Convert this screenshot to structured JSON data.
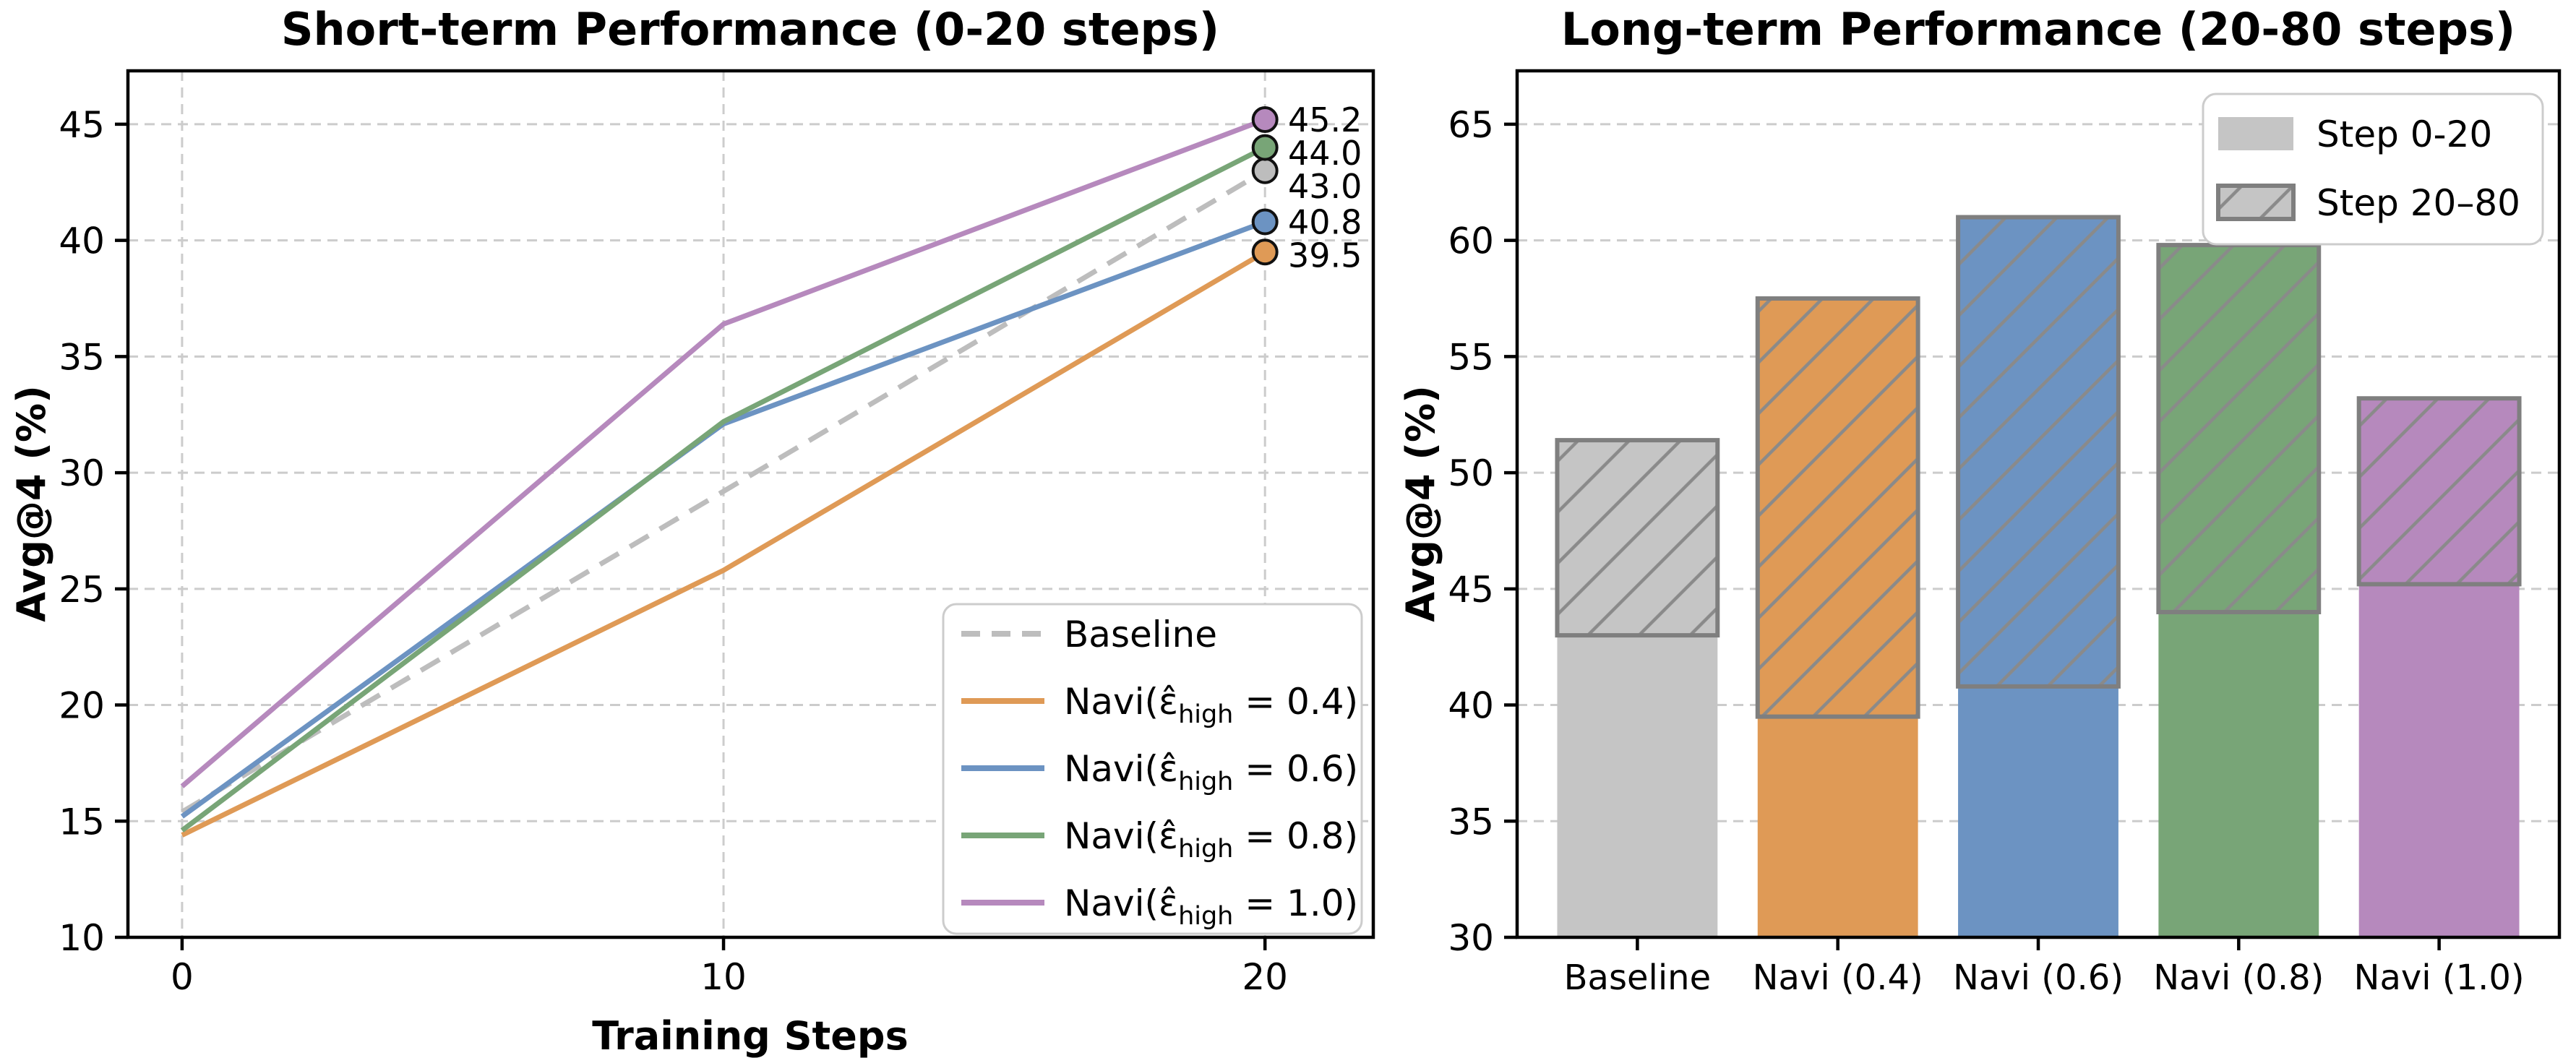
{
  "figure": {
    "background": "#ffffff",
    "grid_color": "#cccccc",
    "spine_color": "#000000",
    "bar_edge_color": "#7f7f7f",
    "hatch_color": "#8a8a8a",
    "legend_border_color": "#cccccc",
    "marker_edge_color": "#111111"
  },
  "chart_data": [
    {
      "type": "line",
      "title": "Short-term Performance (0-20 steps)",
      "xlabel": "Training Steps",
      "ylabel": "Avg@4 (%)",
      "xticks": [
        0,
        10,
        20
      ],
      "yticks": [
        10,
        15,
        20,
        25,
        30,
        35,
        40,
        45
      ],
      "xlim": [
        -1,
        22
      ],
      "ylim": [
        10,
        47.3
      ],
      "grid": "both",
      "legend_position": "lower right",
      "series": [
        {
          "label_pre": "Baseline",
          "label_sub": "",
          "label_post": "",
          "color": "#bdbdbd",
          "dashed": true,
          "x": [
            0,
            20
          ],
          "y": [
            15.4,
            43.0
          ],
          "end_label": "43.0"
        },
        {
          "label_pre": "Navi(ε̂",
          "label_sub": "high",
          "label_post": " = 0.4)",
          "color": "#df9a56",
          "dashed": false,
          "x": [
            0,
            10,
            20
          ],
          "y": [
            14.4,
            25.8,
            39.5
          ],
          "end_label": "39.5"
        },
        {
          "label_pre": "Navi(ε̂",
          "label_sub": "high",
          "label_post": " = 0.6)",
          "color": "#6c93c2",
          "dashed": false,
          "x": [
            0,
            10,
            20
          ],
          "y": [
            15.2,
            32.1,
            40.8
          ],
          "end_label": "40.8"
        },
        {
          "label_pre": "Navi(ε̂",
          "label_sub": "high",
          "label_post": " = 0.8)",
          "color": "#78a577",
          "dashed": false,
          "x": [
            0,
            10,
            20
          ],
          "y": [
            14.6,
            32.2,
            44.0
          ],
          "end_label": "44.0"
        },
        {
          "label_pre": "Navi(ε̂",
          "label_sub": "high",
          "label_post": " = 1.0)",
          "color": "#b689bd",
          "dashed": false,
          "x": [
            0,
            10,
            20
          ],
          "y": [
            16.5,
            36.4,
            45.2
          ],
          "end_label": "45.2"
        }
      ]
    },
    {
      "type": "stacked_bar",
      "title": "Long-term Performance (20-80 steps)",
      "ylabel": "Avg@4 (%)",
      "yticks": [
        30,
        35,
        40,
        45,
        50,
        55,
        60,
        65
      ],
      "ylim": [
        30,
        67.3
      ],
      "grid": "horizontal",
      "legend_position": "upper right",
      "categories": [
        "Baseline",
        "Navi (0.4)",
        "Navi (0.6)",
        "Navi (0.8)",
        "Navi (1.0)"
      ],
      "bar_colors": [
        "#c5c5c5",
        "#df9a56",
        "#6c93c2",
        "#78a577",
        "#b689bd"
      ],
      "series": [
        {
          "name": "Step 0-20",
          "hatch": "none",
          "values": [
            43.0,
            39.5,
            40.8,
            44.0,
            45.2
          ]
        },
        {
          "name": "Step 20–80",
          "hatch": "/",
          "values": [
            8.4,
            18.0,
            20.2,
            15.8,
            8.0
          ]
        }
      ],
      "totals": [
        51.4,
        57.5,
        61.0,
        59.8,
        53.2
      ]
    }
  ]
}
